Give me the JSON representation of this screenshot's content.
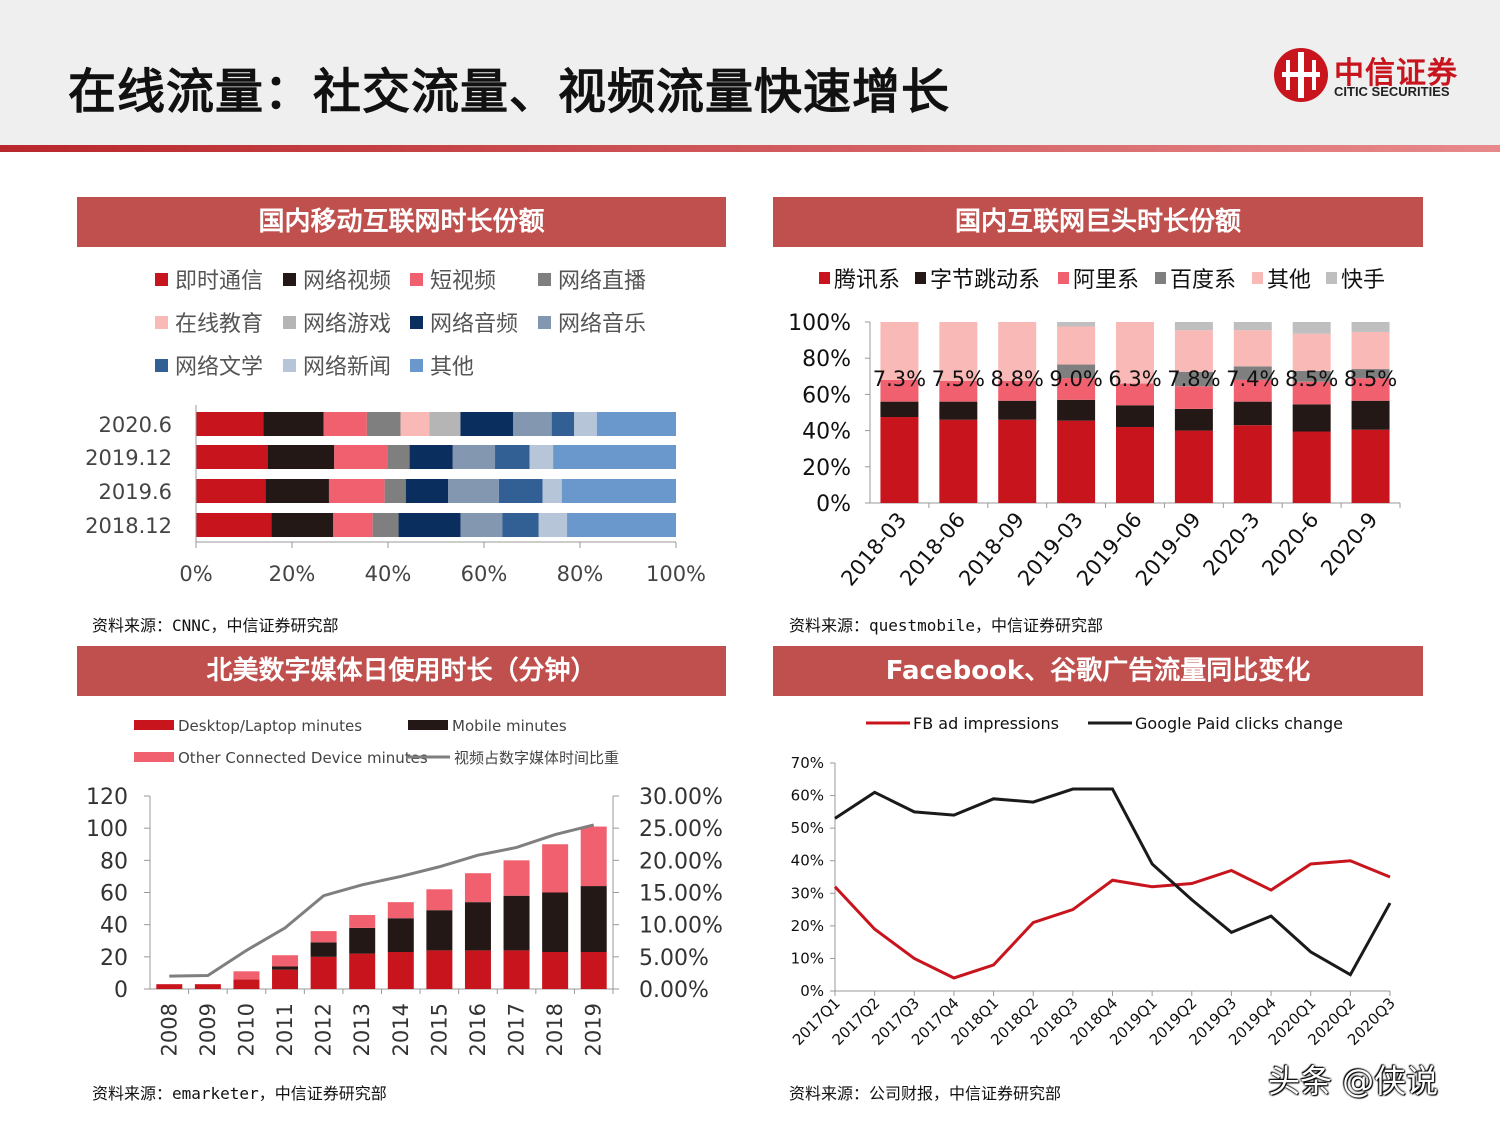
{
  "header": {
    "title": "在线流量：社交流量、视频流量快速增长",
    "logo_cn": "中信证券",
    "logo_en": "CITIC SECURITIES"
  },
  "panels": [
    {
      "title": "国内移动互联网时长份额",
      "source": "资料来源：CNNC，中信证券研究部"
    },
    {
      "title": "国内互联网巨头时长份额",
      "source": "资料来源：questmobile，中信证券研究部"
    },
    {
      "title": "北美数字媒体日使用时长（分钟）",
      "source": "资料来源：emarketer，中信证券研究部"
    },
    {
      "title": "Facebook、谷歌广告流量同比变化",
      "source": "资料来源：公司财报，中信证券研究部"
    }
  ],
  "watermark": "头条 @侠说",
  "chart_data": [
    {
      "type": "bar",
      "orientation": "horizontal",
      "stacked": "percent",
      "title": "国内移动互联网时长份额",
      "categories": [
        "2020.6",
        "2019.12",
        "2019.6",
        "2018.12"
      ],
      "xlim": [
        0,
        100
      ],
      "x_ticks": [
        "0%",
        "20%",
        "40%",
        "60%",
        "80%",
        "100%"
      ],
      "legend_placement": "top",
      "series": [
        {
          "name": "即时通信",
          "color": "#c8151d",
          "values": [
            14,
            15,
            14.5,
            15.7
          ]
        },
        {
          "name": "网络视频",
          "color": "#231815",
          "values": [
            12.6,
            13.8,
            13.2,
            12.9
          ]
        },
        {
          "name": "短视频",
          "color": "#f0606e",
          "values": [
            9.0,
            11.2,
            11.6,
            8.2
          ]
        },
        {
          "name": "网络直播",
          "color": "#7f7f7f",
          "values": [
            7.0,
            4.5,
            4.4,
            5.4
          ]
        },
        {
          "name": "在线教育",
          "color": "#f9b9b7",
          "values": [
            6.0,
            0,
            0,
            0
          ]
        },
        {
          "name": "网络游戏",
          "color": "#b5b5b5",
          "values": [
            6.5,
            0,
            0,
            0
          ]
        },
        {
          "name": "网络音频",
          "color": "#0a2f5f",
          "values": [
            11.0,
            9.0,
            8.8,
            12.9
          ]
        },
        {
          "name": "网络音乐",
          "color": "#8497b0",
          "values": [
            8.0,
            8.8,
            10.6,
            8.7
          ]
        },
        {
          "name": "网络文学",
          "color": "#325f94",
          "values": [
            4.7,
            7.2,
            9.1,
            7.6
          ]
        },
        {
          "name": "网络新闻",
          "color": "#b7c5d8",
          "values": [
            4.7,
            4.9,
            4.0,
            5.9
          ]
        },
        {
          "name": "其他",
          "color": "#6a98cc",
          "values": [
            16.5,
            25.6,
            23.8,
            22.7
          ]
        }
      ]
    },
    {
      "type": "bar",
      "stacked": "percent",
      "title": "国内互联网巨头时长份额",
      "categories": [
        "2018-03",
        "2018-06",
        "2018-09",
        "2019-03",
        "2019-06",
        "2019-09",
        "2020-3",
        "2020-6",
        "2020-9"
      ],
      "ylim": [
        0,
        100
      ],
      "y_ticks": [
        "0%",
        "20%",
        "40%",
        "60%",
        "80%",
        "100%"
      ],
      "legend_placement": "top",
      "data_labels": [
        "7.3%",
        "7.5%",
        "8.8%",
        "9.0%",
        "6.3%",
        "7.8%",
        "7.4%",
        "8.5%",
        "8.5%"
      ],
      "series": [
        {
          "name": "腾讯系",
          "color": "#c8151d",
          "values": [
            47.5,
            46,
            46,
            45.5,
            42,
            40,
            43,
            39.5,
            40.5
          ]
        },
        {
          "name": "字节跳动系",
          "color": "#231815",
          "values": [
            8.5,
            10,
            10.5,
            11.5,
            12,
            12,
            13,
            15,
            16
          ]
        },
        {
          "name": "阿里系",
          "color": "#f0606e",
          "values": [
            12,
            11.5,
            11,
            12,
            12,
            12.5,
            12,
            12.5,
            12.5
          ]
        },
        {
          "name": "百度系",
          "color": "#7f7f7f",
          "values": [
            0,
            0,
            0,
            7.5,
            0,
            8,
            7.5,
            6,
            5
          ]
        },
        {
          "name": "其他",
          "color": "#f9b9b7",
          "values": [
            32,
            32.5,
            32.5,
            21,
            34,
            23,
            20,
            20.5,
            20.5
          ]
        },
        {
          "name": "快手",
          "color": "#bfbfbf",
          "values": [
            0,
            0,
            0,
            2.5,
            0,
            4.5,
            4.5,
            6.5,
            5.5
          ]
        }
      ]
    },
    {
      "type": "bar",
      "stacked": true,
      "title": "北美数字媒体日使用时长（分钟）",
      "categories": [
        "2008",
        "2009",
        "2010",
        "2011",
        "2012",
        "2013",
        "2014",
        "2015",
        "2016",
        "2017",
        "2018",
        "2019"
      ],
      "ylim": [
        0,
        120
      ],
      "y_ticks": [
        "0",
        "20",
        "40",
        "60",
        "80",
        "100",
        "120"
      ],
      "y2lim": [
        0,
        30
      ],
      "y2_ticks": [
        "0.00%",
        "5.00%",
        "10.00%",
        "15.00%",
        "20.00%",
        "25.00%",
        "30.00%"
      ],
      "legend_placement": "top",
      "series": [
        {
          "name": "Desktop/Laptop minutes",
          "color": "#c8151d",
          "values": [
            3,
            3,
            6,
            12,
            20,
            22,
            23,
            24,
            24,
            24,
            23,
            23
          ]
        },
        {
          "name": "Mobile minutes",
          "color": "#231815",
          "values": [
            0,
            0,
            0,
            2,
            9,
            16,
            21,
            25,
            30,
            34,
            37,
            41
          ]
        },
        {
          "name": "Other Connected Device minutes",
          "color": "#f0606e",
          "values": [
            0,
            0,
            5,
            7,
            7,
            8,
            10,
            13,
            18,
            22,
            30,
            37
          ]
        },
        {
          "name": "视频占数字媒体时间比重",
          "color": "#7f7f7f",
          "type": "line",
          "axis": "right",
          "values": [
            2.0,
            2.1,
            6.0,
            9.5,
            14.5,
            16.2,
            17.5,
            19.0,
            20.8,
            22.0,
            24.0,
            25.5
          ]
        }
      ]
    },
    {
      "type": "line",
      "title": "Facebook、谷歌广告流量同比变化",
      "categories": [
        "2017Q1",
        "2017Q2",
        "2017Q3",
        "2017Q4",
        "2018Q1",
        "2018Q2",
        "2018Q3",
        "2018Q4",
        "2019Q1",
        "2019Q2",
        "2019Q3",
        "2019Q4",
        "2020Q1",
        "2020Q2",
        "2020Q3"
      ],
      "ylim": [
        0,
        70
      ],
      "y_ticks": [
        "0%",
        "10%",
        "20%",
        "30%",
        "40%",
        "50%",
        "60%",
        "70%"
      ],
      "legend_placement": "top",
      "series": [
        {
          "name": "FB ad impressions",
          "color": "#c8151d",
          "values": [
            32,
            19,
            10,
            4,
            8,
            21,
            25,
            34,
            32,
            33,
            37,
            31,
            39,
            40,
            35
          ]
        },
        {
          "name": "Google Paid clicks change",
          "color": "#1a1a1a",
          "values": [
            53,
            61,
            55,
            54,
            59,
            58,
            62,
            62,
            39,
            28,
            18,
            23,
            12,
            5,
            27
          ]
        }
      ]
    }
  ]
}
